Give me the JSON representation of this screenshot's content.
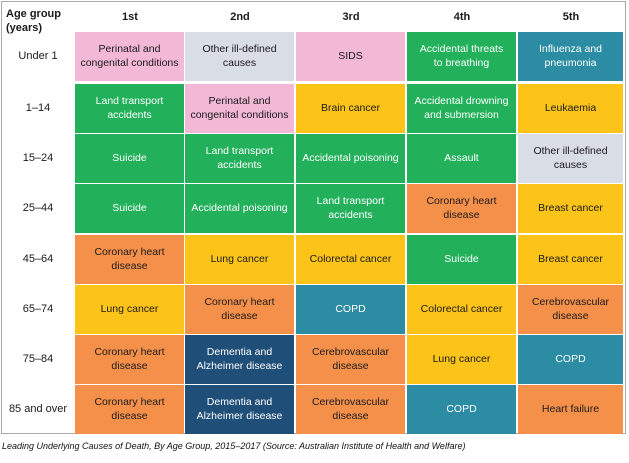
{
  "chart_data": {
    "type": "table",
    "corner_header": "Age group\n(years)",
    "columns": [
      "1st",
      "2nd",
      "3rd",
      "4th",
      "5th"
    ],
    "rows": [
      {
        "age": "Under 1",
        "cells": [
          {
            "label": "Perinatal and\ncongenital conditions",
            "group": "pink"
          },
          {
            "label": "Other ill-defined\ncauses",
            "group": "lightgrey"
          },
          {
            "label": "SIDS",
            "group": "pink"
          },
          {
            "label": "Accidental threats\nto breathing",
            "group": "green"
          },
          {
            "label": "Influenza and\npneumonia",
            "group": "teal"
          }
        ]
      },
      {
        "age": "1–14",
        "cells": [
          {
            "label": "Land transport\naccidents",
            "group": "green"
          },
          {
            "label": "Perinatal and\ncongenital conditions",
            "group": "pink"
          },
          {
            "label": "Brain cancer",
            "group": "yellow"
          },
          {
            "label": "Accidental drowning\nand submersion",
            "group": "green"
          },
          {
            "label": "Leukaemia",
            "group": "yellow"
          }
        ]
      },
      {
        "age": "15–24",
        "cells": [
          {
            "label": "Suicide",
            "group": "green"
          },
          {
            "label": "Land transport\naccidents",
            "group": "green"
          },
          {
            "label": "Accidental poisoning",
            "group": "green"
          },
          {
            "label": "Assault",
            "group": "green"
          },
          {
            "label": "Other ill-defined\ncauses",
            "group": "lightgrey"
          }
        ]
      },
      {
        "age": "25–44",
        "cells": [
          {
            "label": "Suicide",
            "group": "green"
          },
          {
            "label": "Accidental poisoning",
            "group": "green"
          },
          {
            "label": "Land transport\naccidents",
            "group": "green"
          },
          {
            "label": "Coronary heart\ndisease",
            "group": "orange"
          },
          {
            "label": "Breast cancer",
            "group": "yellow"
          }
        ]
      },
      {
        "age": "45–64",
        "cells": [
          {
            "label": "Coronary heart\ndisease",
            "group": "orange"
          },
          {
            "label": "Lung cancer",
            "group": "yellow"
          },
          {
            "label": "Colorectal cancer",
            "group": "yellow"
          },
          {
            "label": "Suicide",
            "group": "green"
          },
          {
            "label": "Breast cancer",
            "group": "yellow"
          }
        ]
      },
      {
        "age": "65–74",
        "cells": [
          {
            "label": "Lung cancer",
            "group": "yellow"
          },
          {
            "label": "Coronary heart\ndisease",
            "group": "orange"
          },
          {
            "label": "COPD",
            "group": "teal"
          },
          {
            "label": "Colorectal cancer",
            "group": "yellow"
          },
          {
            "label": "Cerebrovascular\ndisease",
            "group": "orange"
          }
        ]
      },
      {
        "age": "75–84",
        "cells": [
          {
            "label": "Coronary heart\ndisease",
            "group": "orange"
          },
          {
            "label": "Dementia and\nAlzheimer disease",
            "group": "navy"
          },
          {
            "label": "Cerebrovascular\ndisease",
            "group": "orange"
          },
          {
            "label": "Lung cancer",
            "group": "yellow"
          },
          {
            "label": "COPD",
            "group": "teal"
          }
        ]
      },
      {
        "age": "85 and over",
        "cells": [
          {
            "label": "Coronary heart\ndisease",
            "group": "orange"
          },
          {
            "label": "Dementia and\nAlzheimer disease",
            "group": "navy"
          },
          {
            "label": "Cerebrovascular\ndisease",
            "group": "orange"
          },
          {
            "label": "COPD",
            "group": "teal"
          },
          {
            "label": "Heart failure",
            "group": "orange"
          }
        ]
      }
    ],
    "group_colors": {
      "pink": "#f2b8d6",
      "lightgrey": "#d9dde5",
      "green": "#22b15a",
      "teal": "#2b8ca3",
      "yellow": "#fcc419",
      "orange": "#f4904a",
      "navy": "#1f4e79"
    },
    "group_text_colors": {
      "pink": "#1a1a1a",
      "lightgrey": "#1a1a1a",
      "green": "#ffffff",
      "teal": "#ffffff",
      "yellow": "#1a1a1a",
      "orange": "#1a1a1a",
      "navy": "#ffffff"
    }
  },
  "caption": "Leading Underlying Causes of Death, By Age Group, 2015–2017 (Source: Australian Institute of Health and Welfare)"
}
